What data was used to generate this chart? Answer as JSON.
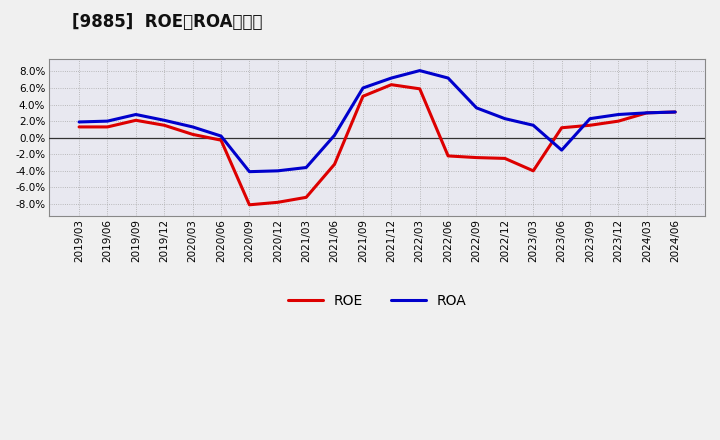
{
  "title": "[9885]  ROE、ROAの推移",
  "x_labels": [
    "2019/03",
    "2019/06",
    "2019/09",
    "2019/12",
    "2020/03",
    "2020/06",
    "2020/09",
    "2020/12",
    "2021/03",
    "2021/06",
    "2021/09",
    "2021/12",
    "2022/03",
    "2022/06",
    "2022/09",
    "2022/12",
    "2023/03",
    "2023/06",
    "2023/09",
    "2023/12",
    "2024/03",
    "2024/06"
  ],
  "ROE": [
    1.3,
    1.3,
    2.1,
    1.5,
    0.4,
    -0.3,
    -8.1,
    -7.8,
    -7.2,
    -3.2,
    5.0,
    6.4,
    5.9,
    -2.2,
    -2.4,
    -2.5,
    -4.0,
    1.2,
    1.5,
    2.0,
    3.0,
    3.1
  ],
  "ROA": [
    1.9,
    2.0,
    2.8,
    2.1,
    1.3,
    0.2,
    -4.1,
    -4.0,
    -3.6,
    0.3,
    6.0,
    7.2,
    8.1,
    7.2,
    3.6,
    2.3,
    1.5,
    -1.5,
    2.3,
    2.8,
    3.0,
    3.1
  ],
  "ROE_color": "#dd0000",
  "ROA_color": "#0000cc",
  "bg_color": "#f0f0f0",
  "plot_bg_color": "#e8e8f0",
  "grid_color": "#aaaaaa",
  "zero_line_color": "#333333",
  "ylim_min": -9.0,
  "ylim_max": 9.0,
  "yticks": [
    -8.0,
    -6.0,
    -4.0,
    -2.0,
    0.0,
    2.0,
    4.0,
    6.0,
    8.0
  ],
  "line_width": 2.2,
  "title_fontsize": 12,
  "legend_fontsize": 10,
  "tick_fontsize": 7.5
}
